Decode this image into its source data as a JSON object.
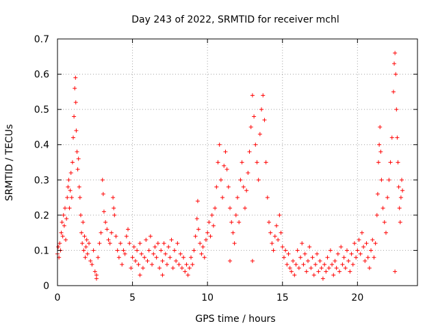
{
  "chart_data": {
    "type": "scatter",
    "title": "Day 243 of 2022, SRMTID for receiver mchl",
    "xlabel": "GPS time / hours",
    "ylabel": "SRMTID / TECUs",
    "xlim": [
      0,
      24
    ],
    "ylim": [
      0,
      0.7
    ],
    "xticks": [
      0,
      5,
      10,
      15,
      20
    ],
    "yticks": [
      0,
      0.1,
      0.2,
      0.3,
      0.4,
      0.5,
      0.6,
      0.7
    ],
    "grid": true,
    "marker": "+",
    "colors": {
      "series": "#ff0000",
      "grid": "#a0a0a0",
      "axis": "#000000"
    },
    "series": [
      {
        "name": "SRMTID",
        "points": [
          [
            0.0,
            0.09
          ],
          [
            0.05,
            0.11
          ],
          [
            0.1,
            0.08
          ],
          [
            0.15,
            0.12
          ],
          [
            0.2,
            0.1
          ],
          [
            0.25,
            0.15
          ],
          [
            0.3,
            0.18
          ],
          [
            0.35,
            0.14
          ],
          [
            0.4,
            0.2
          ],
          [
            0.45,
            0.17
          ],
          [
            0.5,
            0.22
          ],
          [
            0.55,
            0.13
          ],
          [
            0.6,
            0.19
          ],
          [
            0.65,
            0.25
          ],
          [
            0.7,
            0.28
          ],
          [
            0.75,
            0.3
          ],
          [
            0.8,
            0.22
          ],
          [
            0.85,
            0.27
          ],
          [
            0.9,
            0.32
          ],
          [
            0.95,
            0.25
          ],
          [
            1.0,
            0.35
          ],
          [
            1.05,
            0.42
          ],
          [
            1.1,
            0.48
          ],
          [
            1.15,
            0.56
          ],
          [
            1.2,
            0.59
          ],
          [
            1.22,
            0.52
          ],
          [
            1.25,
            0.44
          ],
          [
            1.3,
            0.38
          ],
          [
            1.35,
            0.33
          ],
          [
            1.4,
            0.36
          ],
          [
            1.45,
            0.28
          ],
          [
            1.5,
            0.25
          ],
          [
            1.55,
            0.2
          ],
          [
            1.6,
            0.15
          ],
          [
            1.65,
            0.12
          ],
          [
            1.7,
            0.18
          ],
          [
            1.75,
            0.1
          ],
          [
            1.8,
            0.14
          ],
          [
            1.85,
            0.08
          ],
          [
            1.9,
            0.11
          ],
          [
            1.95,
            0.13
          ],
          [
            2.0,
            0.09
          ],
          [
            2.1,
            0.12
          ],
          [
            2.2,
            0.07
          ],
          [
            2.3,
            0.06
          ],
          [
            2.4,
            0.1
          ],
          [
            2.5,
            0.04
          ],
          [
            2.6,
            0.02
          ],
          [
            2.7,
            0.08
          ],
          [
            2.8,
            0.12
          ],
          [
            2.9,
            0.15
          ],
          [
            3.0,
            0.3
          ],
          [
            3.05,
            0.26
          ],
          [
            3.1,
            0.21
          ],
          [
            3.2,
            0.18
          ],
          [
            3.3,
            0.16
          ],
          [
            3.4,
            0.13
          ],
          [
            3.5,
            0.12
          ],
          [
            3.6,
            0.15
          ],
          [
            3.7,
            0.25
          ],
          [
            3.75,
            0.22
          ],
          [
            3.8,
            0.2
          ],
          [
            3.9,
            0.14
          ],
          [
            4.0,
            0.1
          ],
          [
            4.1,
            0.08
          ],
          [
            4.2,
            0.12
          ],
          [
            4.3,
            0.06
          ],
          [
            4.4,
            0.1
          ],
          [
            4.5,
            0.09
          ],
          [
            4.6,
            0.14
          ],
          [
            4.7,
            0.16
          ],
          [
            4.8,
            0.12
          ],
          [
            4.9,
            0.05
          ],
          [
            5.0,
            0.08
          ],
          [
            5.1,
            0.11
          ],
          [
            5.2,
            0.07
          ],
          [
            5.3,
            0.1
          ],
          [
            5.4,
            0.06
          ],
          [
            5.5,
            0.12
          ],
          [
            5.6,
            0.09
          ],
          [
            5.7,
            0.05
          ],
          [
            5.8,
            0.08
          ],
          [
            5.9,
            0.13
          ],
          [
            6.0,
            0.07
          ],
          [
            6.1,
            0.1
          ],
          [
            6.2,
            0.14
          ],
          [
            6.3,
            0.06
          ],
          [
            6.4,
            0.09
          ],
          [
            6.5,
            0.11
          ],
          [
            6.6,
            0.08
          ],
          [
            6.7,
            0.12
          ],
          [
            6.8,
            0.05
          ],
          [
            6.9,
            0.1
          ],
          [
            7.0,
            0.07
          ],
          [
            7.1,
            0.12
          ],
          [
            7.2,
            0.09
          ],
          [
            7.3,
            0.06
          ],
          [
            7.4,
            0.11
          ],
          [
            7.5,
            0.08
          ],
          [
            7.6,
            0.13
          ],
          [
            7.7,
            0.05
          ],
          [
            7.8,
            0.1
          ],
          [
            7.9,
            0.07
          ],
          [
            8.0,
            0.12
          ],
          [
            8.1,
            0.06
          ],
          [
            8.2,
            0.09
          ],
          [
            8.3,
            0.05
          ],
          [
            8.4,
            0.08
          ],
          [
            8.5,
            0.04
          ],
          [
            8.6,
            0.06
          ],
          [
            8.7,
            0.03
          ],
          [
            8.8,
            0.05
          ],
          [
            8.9,
            0.08
          ],
          [
            9.0,
            0.06
          ],
          [
            9.1,
            0.1
          ],
          [
            9.2,
            0.14
          ],
          [
            9.3,
            0.19
          ],
          [
            9.35,
            0.24
          ],
          [
            9.4,
            0.16
          ],
          [
            9.5,
            0.12
          ],
          [
            9.6,
            0.09
          ],
          [
            9.7,
            0.11
          ],
          [
            9.8,
            0.08
          ],
          [
            9.9,
            0.13
          ],
          [
            10.0,
            0.15
          ],
          [
            10.1,
            0.18
          ],
          [
            10.2,
            0.14
          ],
          [
            10.3,
            0.2
          ],
          [
            10.4,
            0.17
          ],
          [
            10.5,
            0.22
          ],
          [
            10.6,
            0.28
          ],
          [
            10.7,
            0.35
          ],
          [
            10.8,
            0.4
          ],
          [
            10.9,
            0.3
          ],
          [
            11.0,
            0.25
          ],
          [
            11.1,
            0.34
          ],
          [
            11.2,
            0.38
          ],
          [
            11.3,
            0.33
          ],
          [
            11.4,
            0.28
          ],
          [
            11.5,
            0.22
          ],
          [
            11.6,
            0.18
          ],
          [
            11.7,
            0.15
          ],
          [
            11.8,
            0.12
          ],
          [
            11.9,
            0.2
          ],
          [
            12.0,
            0.25
          ],
          [
            12.1,
            0.18
          ],
          [
            12.2,
            0.3
          ],
          [
            12.3,
            0.35
          ],
          [
            12.4,
            0.28
          ],
          [
            12.5,
            0.22
          ],
          [
            12.6,
            0.27
          ],
          [
            12.7,
            0.32
          ],
          [
            12.8,
            0.38
          ],
          [
            12.9,
            0.45
          ],
          [
            13.0,
            0.54
          ],
          [
            13.1,
            0.48
          ],
          [
            13.2,
            0.4
          ],
          [
            13.3,
            0.35
          ],
          [
            13.4,
            0.3
          ],
          [
            13.5,
            0.43
          ],
          [
            13.6,
            0.5
          ],
          [
            13.7,
            0.54
          ],
          [
            13.8,
            0.47
          ],
          [
            13.9,
            0.35
          ],
          [
            14.0,
            0.25
          ],
          [
            14.1,
            0.18
          ],
          [
            14.2,
            0.15
          ],
          [
            14.3,
            0.12
          ],
          [
            14.4,
            0.1
          ],
          [
            14.5,
            0.14
          ],
          [
            14.6,
            0.17
          ],
          [
            14.7,
            0.13
          ],
          [
            14.8,
            0.2
          ],
          [
            14.9,
            0.15
          ],
          [
            15.0,
            0.11
          ],
          [
            15.1,
            0.08
          ],
          [
            15.2,
            0.1
          ],
          [
            15.3,
            0.06
          ],
          [
            15.4,
            0.09
          ],
          [
            15.5,
            0.05
          ],
          [
            15.6,
            0.04
          ],
          [
            15.7,
            0.07
          ],
          [
            15.8,
            0.03
          ],
          [
            15.9,
            0.06
          ],
          [
            16.0,
            0.1
          ],
          [
            16.1,
            0.05
          ],
          [
            16.2,
            0.08
          ],
          [
            16.3,
            0.12
          ],
          [
            16.4,
            0.06
          ],
          [
            16.5,
            0.09
          ],
          [
            16.6,
            0.04
          ],
          [
            16.7,
            0.07
          ],
          [
            16.8,
            0.11
          ],
          [
            16.9,
            0.05
          ],
          [
            17.0,
            0.08
          ],
          [
            17.1,
            0.03
          ],
          [
            17.2,
            0.06
          ],
          [
            17.3,
            0.09
          ],
          [
            17.4,
            0.04
          ],
          [
            17.5,
            0.07
          ],
          [
            17.6,
            0.05
          ],
          [
            17.7,
            0.02
          ],
          [
            17.8,
            0.06
          ],
          [
            17.9,
            0.04
          ],
          [
            18.0,
            0.08
          ],
          [
            18.1,
            0.05
          ],
          [
            18.2,
            0.1
          ],
          [
            18.3,
            0.06
          ],
          [
            18.4,
            0.03
          ],
          [
            18.5,
            0.07
          ],
          [
            18.6,
            0.05
          ],
          [
            18.7,
            0.09
          ],
          [
            18.8,
            0.04
          ],
          [
            18.9,
            0.11
          ],
          [
            19.0,
            0.06
          ],
          [
            19.1,
            0.08
          ],
          [
            19.2,
            0.05
          ],
          [
            19.3,
            0.1
          ],
          [
            19.4,
            0.07
          ],
          [
            19.5,
            0.04
          ],
          [
            19.6,
            0.09
          ],
          [
            19.7,
            0.06
          ],
          [
            19.8,
            0.12
          ],
          [
            19.9,
            0.08
          ],
          [
            20.0,
            0.1
          ],
          [
            20.1,
            0.13
          ],
          [
            20.2,
            0.09
          ],
          [
            20.3,
            0.15
          ],
          [
            20.4,
            0.11
          ],
          [
            20.5,
            0.07
          ],
          [
            20.6,
            0.12
          ],
          [
            20.7,
            0.08
          ],
          [
            20.8,
            0.05
          ],
          [
            20.9,
            0.1
          ],
          [
            21.0,
            0.13
          ],
          [
            21.1,
            0.08
          ],
          [
            21.2,
            0.12
          ],
          [
            21.3,
            0.2
          ],
          [
            21.35,
            0.26
          ],
          [
            21.4,
            0.35
          ],
          [
            21.45,
            0.4
          ],
          [
            21.5,
            0.45
          ],
          [
            21.55,
            0.38
          ],
          [
            21.6,
            0.3
          ],
          [
            21.7,
            0.22
          ],
          [
            21.8,
            0.18
          ],
          [
            21.9,
            0.15
          ],
          [
            22.0,
            0.25
          ],
          [
            22.1,
            0.3
          ],
          [
            22.2,
            0.35
          ],
          [
            22.3,
            0.42
          ],
          [
            22.4,
            0.55
          ],
          [
            22.45,
            0.63
          ],
          [
            22.5,
            0.66
          ],
          [
            22.55,
            0.6
          ],
          [
            22.6,
            0.5
          ],
          [
            22.65,
            0.42
          ],
          [
            22.7,
            0.35
          ],
          [
            22.75,
            0.28
          ],
          [
            22.8,
            0.22
          ],
          [
            22.85,
            0.18
          ],
          [
            22.9,
            0.25
          ],
          [
            22.95,
            0.3
          ],
          [
            23.0,
            0.27
          ],
          [
            22.5,
            0.04
          ],
          [
            13.0,
            0.07
          ],
          [
            11.5,
            0.07
          ],
          [
            7.0,
            0.03
          ],
          [
            5.5,
            0.03
          ],
          [
            2.6,
            0.03
          ]
        ]
      }
    ]
  }
}
